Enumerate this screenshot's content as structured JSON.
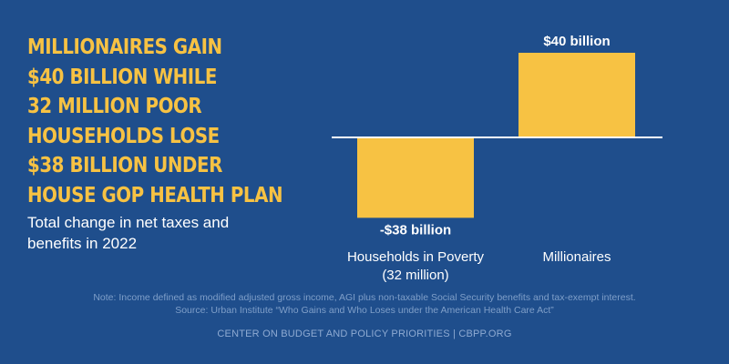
{
  "headline": [
    "MILLIONAIRES GAIN",
    "$40 BILLION WHILE",
    "32 MILLION POOR",
    "HOUSEHOLDS LOSE",
    "$38 BILLION UNDER",
    "HOUSE GOP HEALTH PLAN"
  ],
  "subtitle": "Total change in net taxes and benefits in 2022",
  "note_line1": "Note: Income defined as modified adjusted gross income, AGI plus non-taxable Social Security benefits and tax-exempt interest.",
  "note_line2": "Source: Urban Institute “Who Gains and Who Loses under the American Health Care Act”",
  "footer": "CENTER ON BUDGET AND POLICY PRIORITIES | CBPP.ORG",
  "colors": {
    "background": "#1f4e8c",
    "bar": "#f7c243",
    "headline": "#f7c243",
    "text": "#ffffff"
  },
  "chart_data": {
    "type": "bar",
    "title": "Total change in net taxes and benefits in 2022",
    "categories": [
      "Households in Poverty (32 million)",
      "Millionaires"
    ],
    "category_lines": [
      [
        "Households in Poverty",
        "(32 million)"
      ],
      [
        "Millionaires"
      ]
    ],
    "values": [
      -38,
      40
    ],
    "value_labels": [
      "-$38 billion",
      "$40 billion"
    ],
    "unit": "billion dollars",
    "ylim": [
      -40,
      40
    ],
    "grid": false,
    "legend": "none"
  }
}
